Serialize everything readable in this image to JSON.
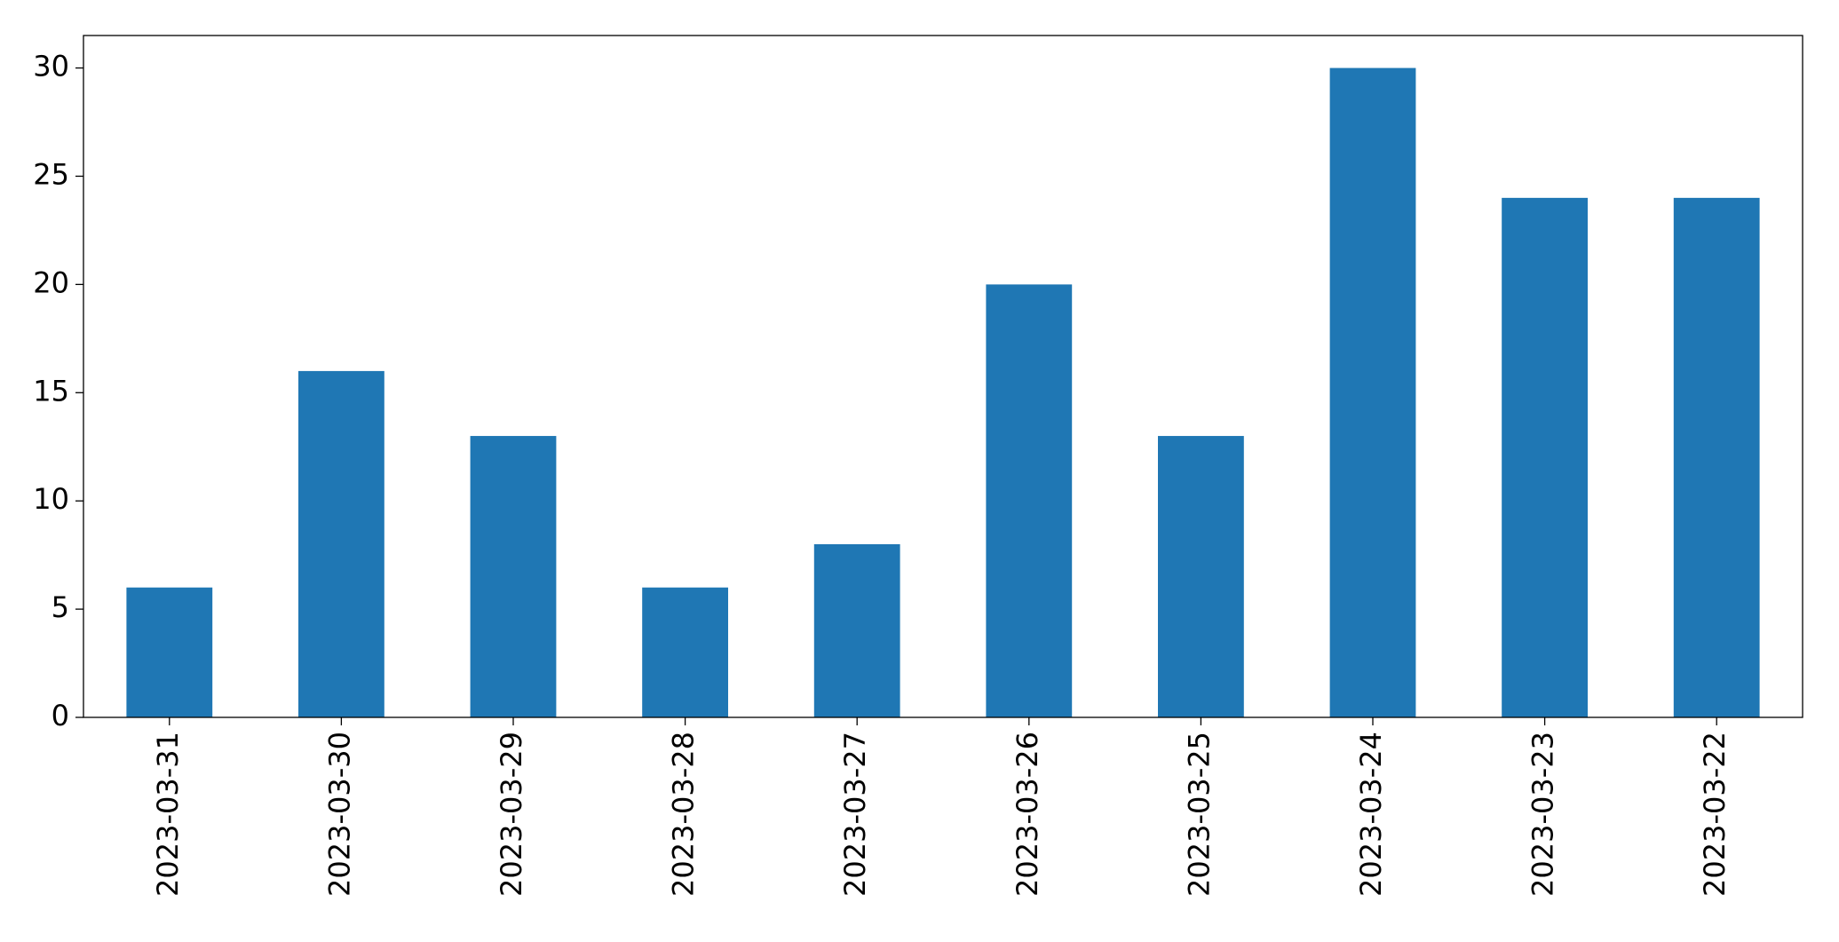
{
  "chart_data": {
    "type": "bar",
    "categories": [
      "2023-03-31",
      "2023-03-30",
      "2023-03-29",
      "2023-03-28",
      "2023-03-27",
      "2023-03-26",
      "2023-03-25",
      "2023-03-24",
      "2023-03-23",
      "2023-03-22"
    ],
    "values": [
      6,
      16,
      13,
      6,
      8,
      20,
      13,
      30,
      24,
      24
    ],
    "color": "#1f77b4",
    "ylim": [
      0,
      31.5
    ],
    "yticks": [
      0,
      5,
      10,
      15,
      20,
      25,
      30
    ],
    "grid": false
  }
}
